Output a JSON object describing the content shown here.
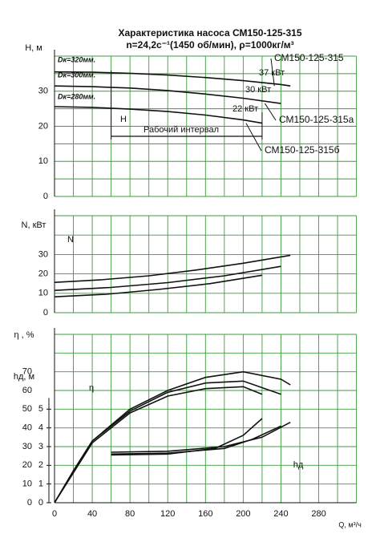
{
  "chart_data": [
    {
      "type": "line",
      "title": "Характеристика насоса СМ150-125-315",
      "subtitle": "n=24,2с⁻¹(1450 об/мин), ρ=1000кг/м³",
      "ylabel": "H, м",
      "xlim": [
        0,
        320
      ],
      "xgrid": [
        0,
        20,
        40,
        60,
        80,
        100,
        120,
        140,
        160,
        180,
        200,
        220,
        240,
        260,
        280,
        300,
        320
      ],
      "ylim": [
        0,
        40
      ],
      "yticks": [
        0,
        10,
        20,
        30
      ],
      "ygrid": [
        0,
        5,
        10,
        15,
        20,
        25,
        30,
        35,
        40
      ],
      "working_range": [
        60,
        220
      ],
      "series": [
        {
          "name": "СМ150-125-315",
          "color": "#111111",
          "x": [
            0,
            40,
            80,
            120,
            160,
            200,
            240,
            250
          ],
          "values": [
            35.5,
            35.4,
            35.1,
            34.6,
            33.9,
            33.0,
            31.9,
            31.5
          ]
        },
        {
          "name": "СМ150-125-315а",
          "color": "#111111",
          "x": [
            0,
            40,
            80,
            120,
            160,
            200,
            240
          ],
          "values": [
            31.5,
            31.3,
            30.9,
            30.2,
            29.2,
            28.0,
            26.5
          ]
        },
        {
          "name": "СМ150-125-315б",
          "color": "#111111",
          "x": [
            0,
            40,
            80,
            120,
            160,
            200,
            220
          ],
          "values": [
            25.6,
            25.4,
            24.9,
            24.2,
            23.2,
            21.8,
            20.9
          ]
        }
      ],
      "annotations": [
        "Dк=320мм.",
        "Dк=300мм.",
        "Dк=280мм.",
        "37 кВт",
        "30 кВт",
        "22 кВт",
        "H",
        "Рабочий интервал"
      ]
    },
    {
      "type": "line",
      "ylabel": "N, кВт",
      "xlim": [
        0,
        320
      ],
      "xgrid": [
        0,
        20,
        40,
        60,
        80,
        100,
        120,
        140,
        160,
        180,
        200,
        220,
        240,
        260,
        280,
        300,
        320
      ],
      "ylim": [
        0,
        50
      ],
      "yticks": [
        0,
        10,
        20,
        30
      ],
      "ygrid": [
        0,
        10,
        20,
        30,
        40,
        50
      ],
      "series": [
        {
          "color": "#111111",
          "x": [
            0,
            50,
            100,
            150,
            200,
            250
          ],
          "values": [
            15.6,
            17,
            19,
            22,
            25.5,
            29.6
          ]
        },
        {
          "color": "#111111",
          "x": [
            0,
            60,
            120,
            180,
            240
          ],
          "values": [
            11.5,
            13,
            15.5,
            19,
            23.9
          ]
        },
        {
          "color": "#111111",
          "x": [
            0,
            55,
            110,
            165,
            220
          ],
          "values": [
            8.2,
            9.5,
            12,
            15,
            19.3
          ]
        }
      ],
      "annotations": [
        "N"
      ]
    },
    {
      "type": "line",
      "ylabel": "η , %",
      "y2label": "hд, м",
      "xlabel": "Q, м³/ч",
      "xlim": [
        0,
        320
      ],
      "xticks": [
        0,
        40,
        80,
        120,
        160,
        200,
        240,
        280
      ],
      "xgrid": [
        0,
        20,
        40,
        60,
        80,
        100,
        120,
        140,
        160,
        180,
        200,
        220,
        240,
        260,
        280,
        300,
        320
      ],
      "ylim": [
        0,
        90
      ],
      "yticks": [
        0,
        10,
        20,
        30,
        40,
        50,
        60,
        70
      ],
      "ygrid": [
        0,
        10,
        20,
        30,
        40,
        50,
        60,
        70,
        80,
        90
      ],
      "y2lim": [
        0,
        9
      ],
      "y2ticks": [
        0,
        1,
        2,
        3,
        4,
        5
      ],
      "series": [
        {
          "color": "#111111",
          "x": [
            0,
            20,
            40,
            80,
            120,
            160,
            200,
            240,
            250
          ],
          "values": [
            0,
            17,
            33,
            50,
            60,
            67,
            70,
            66,
            63
          ]
        },
        {
          "color": "#111111",
          "x": [
            0,
            20,
            40,
            80,
            120,
            160,
            200,
            240
          ],
          "values": [
            0,
            17,
            33,
            49,
            59,
            64,
            65,
            58
          ]
        },
        {
          "color": "#111111",
          "x": [
            0,
            20,
            40,
            80,
            120,
            160,
            200,
            220
          ],
          "values": [
            0,
            16,
            32,
            48,
            57,
            61,
            62,
            58
          ]
        },
        {
          "color": "#111111",
          "axis": "y2",
          "x": [
            60,
            120,
            180,
            220,
            250
          ],
          "values": [
            2.7,
            2.75,
            3.0,
            3.5,
            4.3
          ]
        },
        {
          "color": "#111111",
          "axis": "y2",
          "x": [
            60,
            120,
            180,
            210,
            240
          ],
          "values": [
            2.6,
            2.65,
            2.9,
            3.4,
            4.1
          ]
        },
        {
          "color": "#111111",
          "axis": "y2",
          "x": [
            60,
            120,
            170,
            200,
            220
          ],
          "values": [
            2.55,
            2.6,
            2.9,
            3.6,
            4.5
          ]
        }
      ],
      "annotations": [
        "η",
        "hд"
      ]
    }
  ]
}
